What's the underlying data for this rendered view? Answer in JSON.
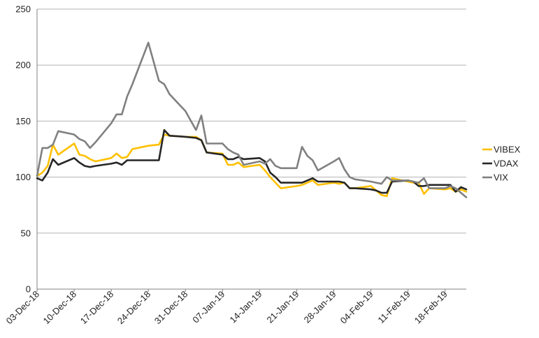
{
  "chart_data": {
    "type": "line",
    "title": "",
    "xlabel": "",
    "ylabel": "",
    "ylim": [
      0,
      250
    ],
    "yticks": [
      0,
      50,
      100,
      150,
      200,
      250
    ],
    "xtick_labels": [
      "03-Dec-18",
      "10-Dec-18",
      "17-Dec-18",
      "24-Dec-18",
      "31-Dec-18",
      "07-Jan-19",
      "14-Jan-19",
      "21-Jan-19",
      "28-Jan-19",
      "04-Feb-19",
      "11-Feb-19",
      "18-Feb-19"
    ],
    "x_start": "2018-12-03",
    "x_end": "2019-02-22",
    "grid": "horizontal",
    "legend_position": "right",
    "series": [
      {
        "name": "VIBEX",
        "color": "#FFC000",
        "points": [
          [
            "2018-12-03",
            101
          ],
          [
            "2018-12-04",
            104
          ],
          [
            "2018-12-05",
            110
          ],
          [
            "2018-12-06",
            129
          ],
          [
            "2018-12-07",
            120
          ],
          [
            "2018-12-10",
            130
          ],
          [
            "2018-12-11",
            120
          ],
          [
            "2018-12-12",
            119
          ],
          [
            "2018-12-13",
            116
          ],
          [
            "2018-12-14",
            114
          ],
          [
            "2018-12-17",
            117
          ],
          [
            "2018-12-18",
            121
          ],
          [
            "2018-12-19",
            117
          ],
          [
            "2018-12-20",
            118
          ],
          [
            "2018-12-21",
            125
          ],
          [
            "2018-12-24",
            128
          ],
          [
            "2018-12-26",
            129
          ],
          [
            "2018-12-27",
            138
          ],
          [
            "2018-12-28",
            137
          ],
          [
            "2018-12-31",
            136
          ],
          [
            "2019-01-02",
            136
          ],
          [
            "2019-01-03",
            133
          ],
          [
            "2019-01-04",
            122
          ],
          [
            "2019-01-07",
            121
          ],
          [
            "2019-01-08",
            111
          ],
          [
            "2019-01-09",
            111
          ],
          [
            "2019-01-10",
            113
          ],
          [
            "2019-01-11",
            109
          ],
          [
            "2019-01-14",
            111
          ],
          [
            "2019-01-15",
            106
          ],
          [
            "2019-01-16",
            100
          ],
          [
            "2019-01-17",
            95
          ],
          [
            "2019-01-18",
            90
          ],
          [
            "2019-01-21",
            92
          ],
          [
            "2019-01-22",
            93
          ],
          [
            "2019-01-23",
            95
          ],
          [
            "2019-01-24",
            97
          ],
          [
            "2019-01-25",
            93
          ],
          [
            "2019-01-28",
            95
          ],
          [
            "2019-01-29",
            94
          ],
          [
            "2019-01-30",
            95
          ],
          [
            "2019-01-31",
            90
          ],
          [
            "2019-02-01",
            90
          ],
          [
            "2019-02-04",
            92
          ],
          [
            "2019-02-05",
            88
          ],
          [
            "2019-02-06",
            84
          ],
          [
            "2019-02-07",
            83
          ],
          [
            "2019-02-08",
            99
          ],
          [
            "2019-02-11",
            96
          ],
          [
            "2019-02-12",
            95
          ],
          [
            "2019-02-13",
            95
          ],
          [
            "2019-02-14",
            85
          ],
          [
            "2019-02-15",
            90
          ],
          [
            "2019-02-18",
            89
          ],
          [
            "2019-02-19",
            90
          ],
          [
            "2019-02-20",
            87
          ],
          [
            "2019-02-21",
            89
          ],
          [
            "2019-02-22",
            87
          ]
        ]
      },
      {
        "name": "VDAX",
        "color": "#262626",
        "points": [
          [
            "2018-12-03",
            99
          ],
          [
            "2018-12-04",
            97
          ],
          [
            "2018-12-05",
            104
          ],
          [
            "2018-12-06",
            116
          ],
          [
            "2018-12-07",
            111
          ],
          [
            "2018-12-10",
            117
          ],
          [
            "2018-12-11",
            113
          ],
          [
            "2018-12-12",
            110
          ],
          [
            "2018-12-13",
            109
          ],
          [
            "2018-12-14",
            110
          ],
          [
            "2018-12-17",
            112
          ],
          [
            "2018-12-18",
            113
          ],
          [
            "2018-12-19",
            111
          ],
          [
            "2018-12-20",
            115
          ],
          [
            "2018-12-21",
            115
          ],
          [
            "2018-12-24",
            115
          ],
          [
            "2018-12-26",
            115
          ],
          [
            "2018-12-27",
            142
          ],
          [
            "2018-12-28",
            137
          ],
          [
            "2018-12-31",
            136
          ],
          [
            "2019-01-02",
            135
          ],
          [
            "2019-01-03",
            133
          ],
          [
            "2019-01-04",
            122
          ],
          [
            "2019-01-07",
            120
          ],
          [
            "2019-01-08",
            116
          ],
          [
            "2019-01-09",
            116
          ],
          [
            "2019-01-10",
            118
          ],
          [
            "2019-01-11",
            116
          ],
          [
            "2019-01-14",
            117
          ],
          [
            "2019-01-15",
            114
          ],
          [
            "2019-01-16",
            104
          ],
          [
            "2019-01-17",
            100
          ],
          [
            "2019-01-18",
            95
          ],
          [
            "2019-01-21",
            95
          ],
          [
            "2019-01-22",
            95
          ],
          [
            "2019-01-23",
            97
          ],
          [
            "2019-01-24",
            99
          ],
          [
            "2019-01-25",
            96
          ],
          [
            "2019-01-28",
            96
          ],
          [
            "2019-01-29",
            96
          ],
          [
            "2019-01-30",
            95
          ],
          [
            "2019-01-31",
            90
          ],
          [
            "2019-02-01",
            90
          ],
          [
            "2019-02-04",
            89
          ],
          [
            "2019-02-05",
            88
          ],
          [
            "2019-02-06",
            86
          ],
          [
            "2019-02-07",
            86
          ],
          [
            "2019-02-08",
            96
          ],
          [
            "2019-02-11",
            97
          ],
          [
            "2019-02-12",
            96
          ],
          [
            "2019-02-13",
            92
          ],
          [
            "2019-02-14",
            92
          ],
          [
            "2019-02-15",
            93
          ],
          [
            "2019-02-18",
            93
          ],
          [
            "2019-02-19",
            93
          ],
          [
            "2019-02-20",
            87
          ],
          [
            "2019-02-21",
            91
          ],
          [
            "2019-02-22",
            89
          ]
        ]
      },
      {
        "name": "VIX",
        "color": "#808080",
        "points": [
          [
            "2018-12-03",
            101
          ],
          [
            "2018-12-04",
            126
          ],
          [
            "2018-12-05",
            126
          ],
          [
            "2018-12-06",
            129
          ],
          [
            "2018-12-07",
            141
          ],
          [
            "2018-12-10",
            138
          ],
          [
            "2018-12-11",
            134
          ],
          [
            "2018-12-12",
            132
          ],
          [
            "2018-12-13",
            126
          ],
          [
            "2018-12-14",
            131
          ],
          [
            "2018-12-17",
            148
          ],
          [
            "2018-12-18",
            156
          ],
          [
            "2018-12-19",
            156
          ],
          [
            "2018-12-20",
            172
          ],
          [
            "2018-12-21",
            183
          ],
          [
            "2018-12-24",
            220
          ],
          [
            "2018-12-26",
            186
          ],
          [
            "2018-12-27",
            183
          ],
          [
            "2018-12-28",
            174
          ],
          [
            "2018-12-31",
            159
          ],
          [
            "2019-01-02",
            142
          ],
          [
            "2019-01-03",
            155
          ],
          [
            "2019-01-04",
            130
          ],
          [
            "2019-01-07",
            130
          ],
          [
            "2019-01-08",
            125
          ],
          [
            "2019-01-09",
            122
          ],
          [
            "2019-01-10",
            120
          ],
          [
            "2019-01-11",
            111
          ],
          [
            "2019-01-14",
            114
          ],
          [
            "2019-01-15",
            112
          ],
          [
            "2019-01-16",
            116
          ],
          [
            "2019-01-17",
            110
          ],
          [
            "2019-01-18",
            108
          ],
          [
            "2019-01-21",
            108
          ],
          [
            "2019-01-22",
            127
          ],
          [
            "2019-01-23",
            119
          ],
          [
            "2019-01-24",
            115
          ],
          [
            "2019-01-25",
            106
          ],
          [
            "2019-01-28",
            114
          ],
          [
            "2019-01-29",
            117
          ],
          [
            "2019-01-30",
            107
          ],
          [
            "2019-01-31",
            100
          ],
          [
            "2019-02-01",
            98
          ],
          [
            "2019-02-04",
            96
          ],
          [
            "2019-02-05",
            95
          ],
          [
            "2019-02-06",
            94
          ],
          [
            "2019-02-07",
            100
          ],
          [
            "2019-02-08",
            97
          ],
          [
            "2019-02-11",
            97
          ],
          [
            "2019-02-12",
            96
          ],
          [
            "2019-02-13",
            95
          ],
          [
            "2019-02-14",
            99
          ],
          [
            "2019-02-15",
            90
          ],
          [
            "2019-02-18",
            90
          ],
          [
            "2019-02-19",
            92
          ],
          [
            "2019-02-20",
            90
          ],
          [
            "2019-02-21",
            86
          ],
          [
            "2019-02-22",
            82
          ]
        ]
      }
    ]
  }
}
